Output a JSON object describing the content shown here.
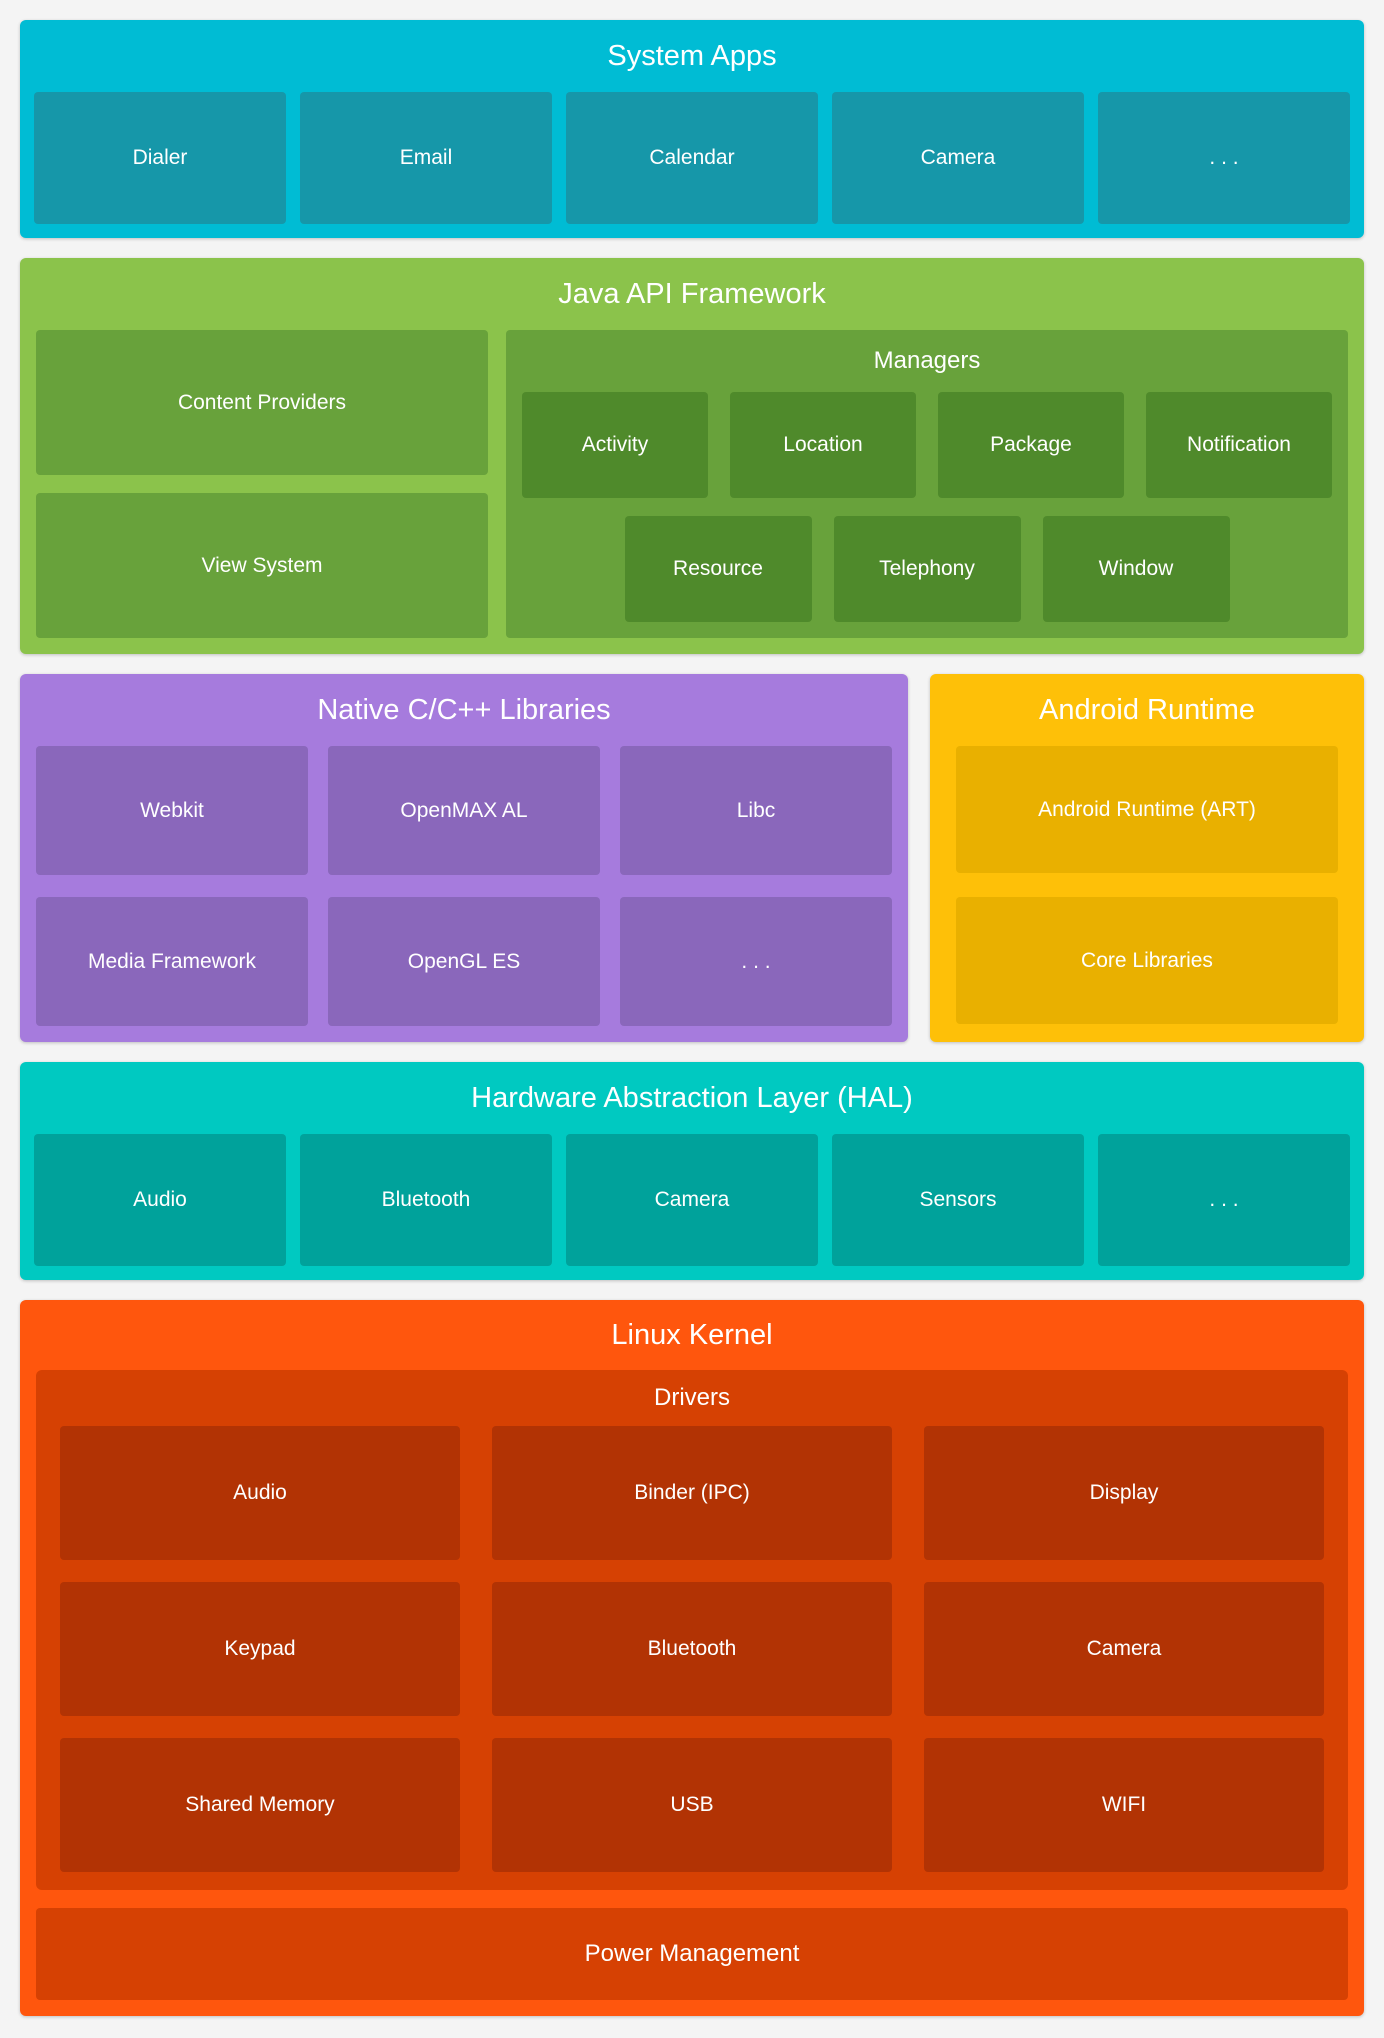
{
  "page": {
    "background": "#F4F4F4",
    "text_color": "#FFFFFF"
  },
  "sections": {
    "system_apps": {
      "title": "System Apps",
      "items": [
        "Dialer",
        "Email",
        "Calendar",
        "Camera",
        ". . ."
      ],
      "colors": {
        "bg": "#00BCD4",
        "box": "#1697A9"
      }
    },
    "java_api": {
      "title": "Java API Framework",
      "left_items": [
        "Content Providers",
        "View System"
      ],
      "managers": {
        "title": "Managers",
        "row1": [
          "Activity",
          "Location",
          "Package",
          "Notification"
        ],
        "row2": [
          "Resource",
          "Telephony",
          "Window"
        ]
      },
      "colors": {
        "bg": "#8BC34B",
        "panel": "#68A23B",
        "box": "#4F8A2B"
      }
    },
    "native_libs": {
      "title": "Native C/C++ Libraries",
      "row1": [
        "Webkit",
        "OpenMAX AL",
        "Libc"
      ],
      "row2": [
        "Media Framework",
        "OpenGL ES",
        ". . ."
      ],
      "colors": {
        "bg": "#A67BDD",
        "box": "#8A67BB"
      }
    },
    "android_runtime": {
      "title": "Android Runtime",
      "items": [
        "Android Runtime (ART)",
        "Core Libraries"
      ],
      "colors": {
        "bg": "#FEC008",
        "box": "#E9B000"
      }
    },
    "hal": {
      "title": "Hardware Abstraction Layer (HAL)",
      "items": [
        "Audio",
        "Bluetooth",
        "Camera",
        "Sensors",
        ". . ."
      ],
      "colors": {
        "bg": "#00C9C1",
        "box": "#00A29B"
      }
    },
    "linux_kernel": {
      "title": "Linux Kernel",
      "drivers": {
        "title": "Drivers",
        "rows": [
          [
            "Audio",
            "Binder (IPC)",
            "Display"
          ],
          [
            "Keypad",
            "Bluetooth",
            "Camera"
          ],
          [
            "Shared Memory",
            "USB",
            "WIFI"
          ]
        ]
      },
      "power_management": "Power Management",
      "colors": {
        "bg": "#FF560D",
        "panel": "#D64103",
        "box": "#B23304"
      }
    }
  }
}
